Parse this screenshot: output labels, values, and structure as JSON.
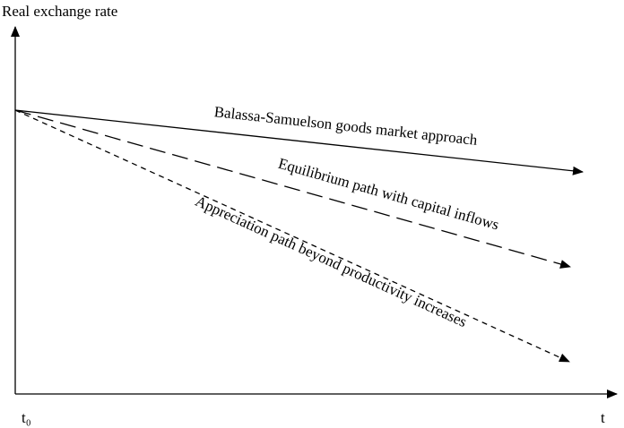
{
  "axes": {
    "y_label": "Real exchange rate",
    "origin_label": "t₀",
    "x_label": "t"
  },
  "paths": [
    {
      "label": "Balassa-Samuelson goods market approach"
    },
    {
      "label": "Equilibrium path with capital inflows"
    },
    {
      "label": "Appreciation path beyond productivity increases"
    }
  ]
}
